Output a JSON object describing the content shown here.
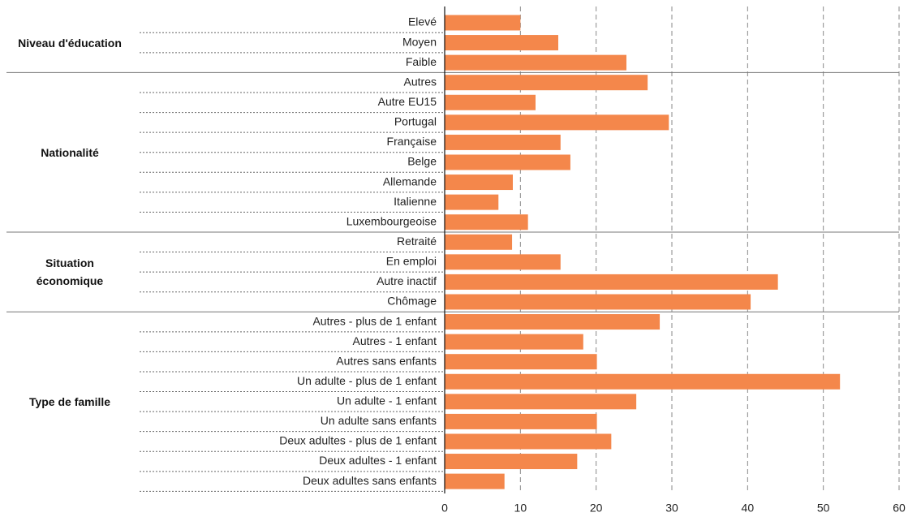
{
  "chart_data": {
    "type": "bar",
    "orientation": "horizontal",
    "color": "#f4874b",
    "xlim": [
      0,
      60
    ],
    "xticks": [
      0,
      10,
      20,
      30,
      40,
      50,
      60
    ],
    "grid": true,
    "groups": [
      {
        "name": "Niveau d'éducation",
        "categories": [
          "Elevé",
          "Moyen",
          "Faible"
        ],
        "values": [
          10,
          15,
          24
        ]
      },
      {
        "name": "Nationalité",
        "categories": [
          "Autres",
          "Autre EU15",
          "Portugal",
          "Française",
          "Belge",
          "Allemande",
          "Italienne",
          "Luxembourgeoise"
        ],
        "values": [
          26.8,
          12,
          29.6,
          15.3,
          16.6,
          9,
          7.1,
          11
        ]
      },
      {
        "name": "Situation\néconomique",
        "categories": [
          "Retraité",
          "En emploi",
          "Autre inactif",
          "Chômage"
        ],
        "values": [
          8.9,
          15.3,
          44,
          40.4
        ]
      },
      {
        "name": "Type de famille",
        "categories": [
          "Autres - plus de 1 enfant",
          "Autres - 1 enfant",
          "Autres sans enfants",
          "Un adulte - plus de 1 enfant",
          "Un adulte - 1 enfant",
          "Un adulte sans enfants",
          "Deux adultes - plus de 1 enfant",
          "Deux adultes - 1 enfant",
          "Deux adultes sans enfants"
        ],
        "values": [
          28.4,
          18.3,
          20.1,
          52.2,
          25.3,
          20.1,
          22,
          17.5,
          7.9
        ]
      }
    ]
  }
}
